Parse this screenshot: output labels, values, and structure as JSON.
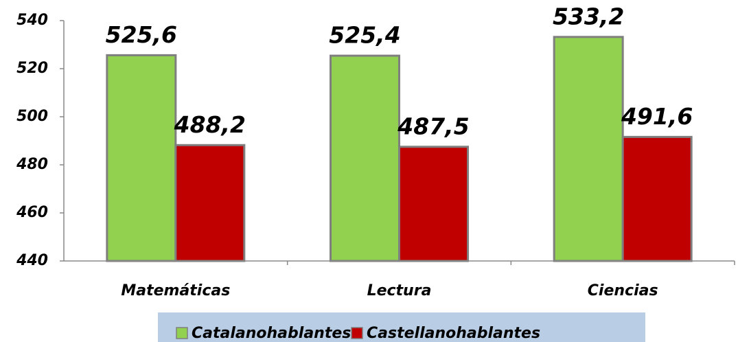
{
  "chart_data": {
    "type": "bar",
    "categories": [
      "Matemáticas",
      "Lectura",
      "Ciencias"
    ],
    "series": [
      {
        "name": "Catalanohablantes",
        "color": "#92d050",
        "values": [
          525.6,
          525.4,
          533.2
        ],
        "value_labels": [
          "525,6",
          "525,4",
          "533,2"
        ]
      },
      {
        "name": "Castellanohablantes",
        "color": "#c00000",
        "values": [
          488.2,
          487.5,
          491.6
        ],
        "value_labels": [
          "488,2",
          "487,5",
          "491,6"
        ]
      }
    ],
    "ylim": [
      440,
      540
    ],
    "yticks": [
      440,
      460,
      480,
      500,
      520,
      540
    ],
    "grid": false,
    "legend": "bottom"
  }
}
